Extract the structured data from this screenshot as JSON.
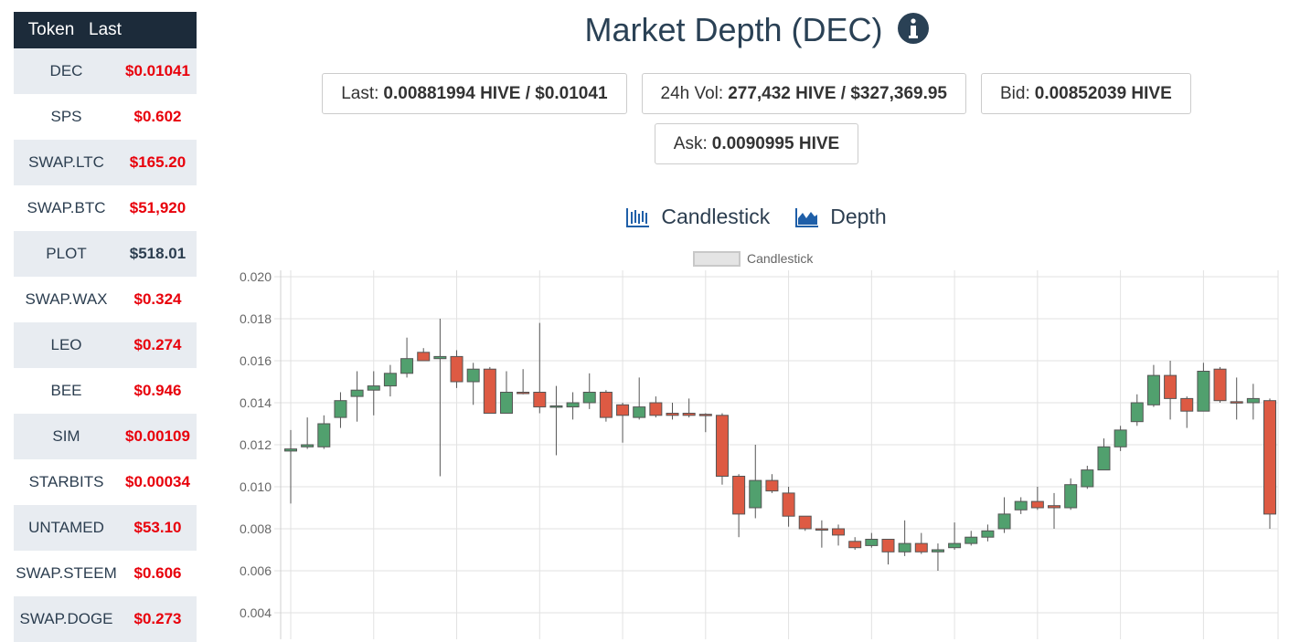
{
  "sidebar": {
    "header": [
      "Token",
      "Last"
    ],
    "rows": [
      {
        "token": "DEC",
        "last": "$0.01041",
        "color": "#e8000b"
      },
      {
        "token": "SPS",
        "last": "$0.602",
        "color": "#e8000b"
      },
      {
        "token": "SWAP.LTC",
        "last": "$165.20",
        "color": "#e8000b"
      },
      {
        "token": "SWAP.BTC",
        "last": "$51,920",
        "color": "#e8000b"
      },
      {
        "token": "PLOT",
        "last": "$518.01",
        "color": "#2c3e50"
      },
      {
        "token": "SWAP.WAX",
        "last": "$0.324",
        "color": "#e8000b"
      },
      {
        "token": "LEO",
        "last": "$0.274",
        "color": "#e8000b"
      },
      {
        "token": "BEE",
        "last": "$0.946",
        "color": "#e8000b"
      },
      {
        "token": "SIM",
        "last": "$0.00109",
        "color": "#e8000b"
      },
      {
        "token": "STARBITS",
        "last": "$0.00034",
        "color": "#e8000b"
      },
      {
        "token": "UNTAMED",
        "last": "$53.10",
        "color": "#e8000b"
      },
      {
        "token": "SWAP.STEEM",
        "last": "$0.606",
        "color": "#e8000b"
      },
      {
        "token": "SWAP.DOGE",
        "last": "$0.273",
        "color": "#e8000b"
      }
    ]
  },
  "header": {
    "title": "Market Depth (DEC)",
    "stats": [
      {
        "label": "Last:",
        "value": "0.00881994 HIVE / $0.01041"
      },
      {
        "label": "24h Vol:",
        "value": "277,432 HIVE / $327,369.95"
      },
      {
        "label": "Bid:",
        "value": "0.00852039 HIVE"
      },
      {
        "label": "Ask:",
        "value": "0.0090995 HIVE"
      }
    ]
  },
  "tabs": [
    "Candlestick",
    "Depth"
  ],
  "chart_data": {
    "type": "candlestick",
    "series_name": "Candlestick",
    "up_color": "#51a06e",
    "down_color": "#dd5a43",
    "grid": true,
    "ylim": [
      0.004,
      0.02
    ],
    "yticks": [
      0.004,
      0.006,
      0.008,
      {
        "value": 0.01,
        "label": "0.010"
      },
      0.012,
      0.014,
      0.016,
      0.018,
      {
        "value": 0.02,
        "label": "0.020"
      }
    ],
    "open": [
      0.0117,
      0.0119,
      0.0119,
      0.0133,
      0.0143,
      0.0146,
      0.0148,
      0.0154,
      0.0164,
      0.0161,
      0.0162,
      0.015,
      0.0156,
      0.0135,
      0.0145,
      0.0145,
      0.0138,
      0.0138,
      0.014,
      0.0145,
      0.0139,
      0.0133,
      0.014,
      0.0135,
      0.0135,
      0.01345,
      0.0134,
      0.0105,
      0.009,
      0.0103,
      0.0097,
      0.0086,
      0.008,
      0.008,
      0.0074,
      0.0072,
      0.0075,
      0.0069,
      0.0073,
      0.0069,
      0.0071,
      0.0073,
      0.0076,
      0.008,
      0.0089,
      0.0093,
      0.0091,
      0.009,
      0.01,
      0.0108,
      0.0119,
      0.0131,
      0.0139,
      0.0153,
      0.0142,
      0.0136,
      0.0156,
      0.01405,
      0.014,
      0.0141
    ],
    "high": [
      0.0127,
      0.0133,
      0.0134,
      0.0145,
      0.0155,
      0.0155,
      0.0158,
      0.0171,
      0.0166,
      0.018,
      0.0165,
      0.0159,
      0.0157,
      0.0155,
      0.0156,
      0.0178,
      0.0148,
      0.0145,
      0.0154,
      0.0146,
      0.014,
      0.0152,
      0.0143,
      0.014,
      0.0142,
      0.0135,
      0.0135,
      0.0106,
      0.012,
      0.0106,
      0.01,
      0.0086,
      0.0084,
      0.0082,
      0.0076,
      0.0078,
      0.0075,
      0.0084,
      0.0078,
      0.0073,
      0.0083,
      0.0079,
      0.0082,
      0.0095,
      0.0095,
      0.01,
      0.0097,
      0.0104,
      0.011,
      0.0123,
      0.0129,
      0.0144,
      0.0158,
      0.016,
      0.0143,
      0.0159,
      0.0157,
      0.0152,
      0.0149,
      0.0142
    ],
    "low": [
      0.0092,
      0.0118,
      0.0118,
      0.0128,
      0.0131,
      0.0134,
      0.0143,
      0.0152,
      0.016,
      0.0105,
      0.0147,
      0.0139,
      0.0135,
      0.0135,
      0.0144,
      0.0135,
      0.0115,
      0.0132,
      0.0137,
      0.0131,
      0.0121,
      0.0132,
      0.0133,
      0.0132,
      0.0133,
      0.0126,
      0.0101,
      0.0076,
      0.0085,
      0.0097,
      0.0081,
      0.0079,
      0.0071,
      0.0072,
      0.007,
      0.0071,
      0.0063,
      0.0067,
      0.0068,
      0.006,
      0.007,
      0.0072,
      0.0074,
      0.0078,
      0.0087,
      0.0089,
      0.008,
      0.0089,
      0.0099,
      0.0108,
      0.0117,
      0.0129,
      0.0138,
      0.0132,
      0.0128,
      0.0136,
      0.014,
      0.0132,
      0.0132,
      0.008
    ],
    "close": [
      0.0118,
      0.012,
      0.013,
      0.0141,
      0.0146,
      0.0148,
      0.0154,
      0.0161,
      0.016,
      0.0162,
      0.015,
      0.0156,
      0.0135,
      0.0145,
      0.01448,
      0.0138,
      0.01385,
      0.014,
      0.0145,
      0.0133,
      0.0134,
      0.0138,
      0.0134,
      0.0134,
      0.0134,
      0.0134,
      0.0105,
      0.0087,
      0.0103,
      0.0098,
      0.0086,
      0.008,
      0.00795,
      0.0077,
      0.0071,
      0.0075,
      0.0069,
      0.0073,
      0.0069,
      0.007,
      0.0073,
      0.0076,
      0.0079,
      0.0087,
      0.0093,
      0.009,
      0.009,
      0.0101,
      0.0108,
      0.0119,
      0.0127,
      0.014,
      0.0153,
      0.0142,
      0.0136,
      0.0155,
      0.0141,
      0.014,
      0.0142,
      0.0087
    ]
  }
}
